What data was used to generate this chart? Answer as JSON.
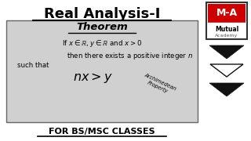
{
  "title": "Real Analysis-I",
  "theorem_label": "Theorem",
  "line1": "If $x \\in \\mathbb{R}$, $y \\in \\mathbb{R}$ and $x > 0$",
  "line2": "then there exists a positive integer $n$",
  "line3": "such that",
  "formula": "$nx > y$",
  "archimedean": "Archimedean\nProperty",
  "footer": "FOR BS/MSC CLASSES",
  "logo_top": "M-A",
  "logo_mid": "Mutual",
  "logo_bot": "Academy",
  "bg_color": "#ffffff",
  "box_color": "#d0d0d0",
  "title_color": "#000000",
  "red_color": "#cc0000",
  "arrow_color": "#111111"
}
